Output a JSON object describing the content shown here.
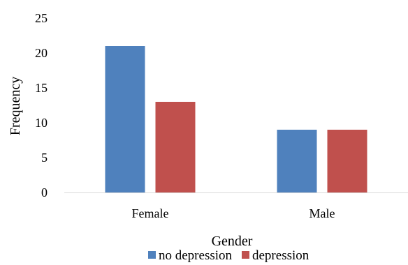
{
  "chart_data": {
    "type": "bar",
    "categories": [
      "Female",
      "Male"
    ],
    "series": [
      {
        "name": "no depression",
        "color": "#4F81BD",
        "values": [
          21,
          9
        ]
      },
      {
        "name": "depression",
        "color": "#C0504D",
        "values": [
          13,
          9
        ]
      }
    ],
    "xlabel": "Gender",
    "ylabel": "Frequency",
    "ylim": [
      0,
      25
    ],
    "yticks": [
      "0",
      "5",
      "10",
      "15",
      "20",
      "25"
    ],
    "grid": false,
    "legend": "bottom"
  }
}
